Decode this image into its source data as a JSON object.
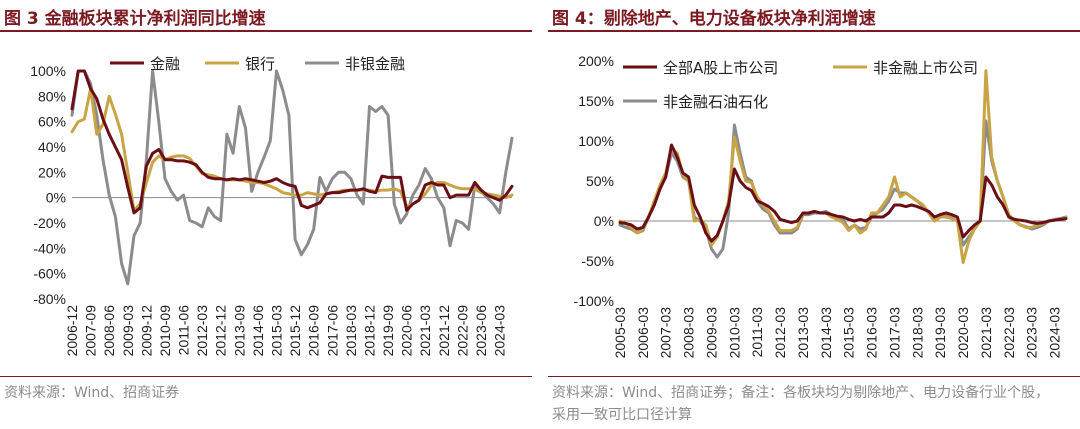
{
  "left": {
    "title": "图 3 金融板块累计净利润同比增速",
    "source": "资料来源：Wind、招商证券",
    "chart_data": {
      "type": "line",
      "ylim": [
        -0.8,
        1.0
      ],
      "yticks": [
        -0.8,
        -0.6,
        -0.4,
        -0.2,
        0,
        0.2,
        0.4,
        0.6,
        0.8,
        1.0
      ],
      "ytick_labels": [
        "-80%",
        "-60%",
        "-40%",
        "-20%",
        "0%",
        "20%",
        "40%",
        "60%",
        "80%",
        "100%"
      ],
      "xtick_labels": [
        "2006-12",
        "2007-09",
        "2008-06",
        "2009-03",
        "2009-12",
        "2010-09",
        "2011-06",
        "2012-03",
        "2012-12",
        "2013-09",
        "2014-06",
        "2015-03",
        "2015-12",
        "2016-09",
        "2017-06",
        "2018-03",
        "2018-12",
        "2019-09",
        "2020-06",
        "2021-03",
        "2021-12",
        "2022-09",
        "2023-06",
        "2024-03"
      ],
      "x": [
        "2006-12",
        "2007-03",
        "2007-06",
        "2007-09",
        "2007-12",
        "2008-03",
        "2008-06",
        "2008-09",
        "2008-12",
        "2009-03",
        "2009-06",
        "2009-09",
        "2009-12",
        "2010-03",
        "2010-06",
        "2010-09",
        "2010-12",
        "2011-03",
        "2011-06",
        "2011-09",
        "2011-12",
        "2012-03",
        "2012-06",
        "2012-09",
        "2012-12",
        "2013-03",
        "2013-06",
        "2013-09",
        "2013-12",
        "2014-03",
        "2014-06",
        "2014-09",
        "2014-12",
        "2015-03",
        "2015-06",
        "2015-09",
        "2015-12",
        "2016-03",
        "2016-06",
        "2016-09",
        "2016-12",
        "2017-03",
        "2017-06",
        "2017-09",
        "2017-12",
        "2018-03",
        "2018-06",
        "2018-09",
        "2018-12",
        "2019-03",
        "2019-06",
        "2019-09",
        "2019-12",
        "2020-03",
        "2020-06",
        "2020-09",
        "2020-12",
        "2021-03",
        "2021-06",
        "2021-09",
        "2021-12",
        "2022-03",
        "2022-06",
        "2022-09",
        "2022-12",
        "2023-03",
        "2023-06",
        "2023-09",
        "2023-12",
        "2024-03",
        "2024-06",
        "2024-09"
      ],
      "series": [
        {
          "name": "金融",
          "color": "#6b0f16",
          "values": [
            0.7,
            1.0,
            1.0,
            0.86,
            0.78,
            0.62,
            0.5,
            0.4,
            0.3,
            0.08,
            -0.12,
            -0.08,
            0.25,
            0.35,
            0.38,
            0.3,
            0.3,
            0.29,
            0.29,
            0.28,
            0.26,
            0.2,
            0.16,
            0.15,
            0.15,
            0.14,
            0.15,
            0.14,
            0.15,
            0.14,
            0.13,
            0.12,
            0.13,
            0.15,
            0.12,
            0.1,
            0.09,
            -0.06,
            -0.08,
            -0.06,
            -0.04,
            0.03,
            0.04,
            0.04,
            0.05,
            0.06,
            0.06,
            0.07,
            0.05,
            0.04,
            0.17,
            0.16,
            0.16,
            0.16,
            -0.1,
            -0.05,
            -0.02,
            0.1,
            0.12,
            0.1,
            0.1,
            0.0,
            0.02,
            0.02,
            0.02,
            0.12,
            0.06,
            0.02,
            0.0,
            -0.02,
            0.02,
            0.09
          ]
        },
        {
          "name": "银行",
          "color": "#c9a445",
          "values": [
            0.52,
            0.6,
            0.62,
            0.86,
            0.5,
            0.58,
            0.8,
            0.66,
            0.5,
            0.2,
            -0.1,
            -0.05,
            0.12,
            0.28,
            0.33,
            0.3,
            0.32,
            0.33,
            0.33,
            0.31,
            0.25,
            0.19,
            0.18,
            0.17,
            0.15,
            0.14,
            0.14,
            0.14,
            0.13,
            0.12,
            0.12,
            0.11,
            0.09,
            0.07,
            0.04,
            0.03,
            0.02,
            0.02,
            0.04,
            0.03,
            0.02,
            0.03,
            0.04,
            0.05,
            0.06,
            0.06,
            0.06,
            0.06,
            0.06,
            0.05,
            0.06,
            0.06,
            0.07,
            0.05,
            -0.07,
            -0.05,
            -0.02,
            0.03,
            0.1,
            0.12,
            0.12,
            0.1,
            0.08,
            0.07,
            0.07,
            0.07,
            0.04,
            0.03,
            0.02,
            0.01,
            0.0,
            0.02
          ]
        },
        {
          "name": "非银金融",
          "color": "#8c8c8c",
          "values": [
            0.65,
            1.0,
            1.0,
            0.9,
            0.65,
            0.3,
            0.02,
            -0.15,
            -0.52,
            -0.68,
            -0.3,
            -0.2,
            0.3,
            1.0,
            0.6,
            0.15,
            0.05,
            -0.02,
            0.02,
            -0.18,
            -0.2,
            -0.23,
            -0.08,
            -0.15,
            -0.18,
            0.5,
            0.35,
            0.72,
            0.55,
            0.05,
            0.2,
            0.32,
            0.45,
            1.0,
            0.85,
            0.65,
            -0.33,
            -0.45,
            -0.37,
            -0.25,
            0.16,
            0.05,
            0.15,
            0.2,
            0.2,
            0.15,
            0.02,
            -0.05,
            0.72,
            0.68,
            0.72,
            0.65,
            -0.05,
            -0.2,
            -0.13,
            0.02,
            0.1,
            0.23,
            0.15,
            0.0,
            -0.08,
            -0.38,
            -0.18,
            -0.2,
            -0.25,
            0.1,
            0.05,
            0.0,
            -0.05,
            -0.12,
            0.2,
            0.47
          ]
        }
      ]
    }
  },
  "right": {
    "title": "图 4：剔除地产、电力设备板块净利润增速",
    "source": "资料来源：Wind、招商证券；备注：各板块均为剔除地产、电力设备行业个股，采用一致可比口径计算",
    "chart_data": {
      "type": "line",
      "ylim": [
        -1.0,
        2.0
      ],
      "yticks": [
        -1.0,
        -0.5,
        0,
        0.5,
        1.0,
        1.5,
        2.0
      ],
      "ytick_labels": [
        "-100%",
        "-50%",
        "0%",
        "50%",
        "100%",
        "150%",
        "200%"
      ],
      "xtick_labels": [
        "2005-03",
        "2006-03",
        "2007-03",
        "2008-03",
        "2009-03",
        "2010-03",
        "2011-03",
        "2012-03",
        "2013-03",
        "2014-03",
        "2015-03",
        "2016-03",
        "2017-03",
        "2018-03",
        "2019-03",
        "2020-03",
        "2021-03",
        "2022-03",
        "2023-03",
        "2024-03"
      ],
      "x": [
        "2005-03",
        "2005-06",
        "2005-09",
        "2005-12",
        "2006-03",
        "2006-06",
        "2006-09",
        "2006-12",
        "2007-03",
        "2007-06",
        "2007-09",
        "2007-12",
        "2008-03",
        "2008-06",
        "2008-09",
        "2008-12",
        "2009-03",
        "2009-06",
        "2009-09",
        "2009-12",
        "2010-03",
        "2010-06",
        "2010-09",
        "2010-12",
        "2011-03",
        "2011-06",
        "2011-09",
        "2011-12",
        "2012-03",
        "2012-06",
        "2012-09",
        "2012-12",
        "2013-03",
        "2013-06",
        "2013-09",
        "2013-12",
        "2014-03",
        "2014-06",
        "2014-09",
        "2014-12",
        "2015-03",
        "2015-06",
        "2015-09",
        "2015-12",
        "2016-03",
        "2016-06",
        "2016-09",
        "2016-12",
        "2017-03",
        "2017-06",
        "2017-09",
        "2017-12",
        "2018-03",
        "2018-06",
        "2018-09",
        "2018-12",
        "2019-03",
        "2019-06",
        "2019-09",
        "2019-12",
        "2020-03",
        "2020-06",
        "2020-09",
        "2020-12",
        "2021-03",
        "2021-06",
        "2021-09",
        "2021-12",
        "2022-03",
        "2022-06",
        "2022-09",
        "2022-12",
        "2023-03",
        "2023-06",
        "2023-09",
        "2023-12",
        "2024-03",
        "2024-06",
        "2024-09"
      ],
      "series": [
        {
          "name": "全部A股上市公司",
          "color": "#6b0f16",
          "values": [
            -0.02,
            -0.03,
            -0.05,
            -0.1,
            -0.08,
            0.05,
            0.2,
            0.4,
            0.55,
            0.95,
            0.8,
            0.6,
            0.55,
            0.2,
            0.05,
            -0.15,
            -0.25,
            -0.18,
            0.0,
            0.2,
            0.65,
            0.5,
            0.42,
            0.38,
            0.25,
            0.22,
            0.18,
            0.12,
            0.02,
            0.0,
            -0.02,
            0.0,
            0.1,
            0.1,
            0.12,
            0.1,
            0.1,
            0.08,
            0.06,
            0.05,
            0.02,
            0.0,
            0.02,
            0.0,
            0.05,
            0.05,
            0.05,
            0.1,
            0.2,
            0.2,
            0.18,
            0.2,
            0.18,
            0.15,
            0.12,
            0.05,
            0.08,
            0.1,
            0.08,
            0.05,
            -0.2,
            -0.12,
            -0.05,
            0.0,
            0.55,
            0.45,
            0.3,
            0.2,
            0.05,
            0.02,
            0.01,
            0.0,
            -0.02,
            -0.03,
            -0.02,
            0.0,
            0.01,
            0.02,
            0.03
          ]
        },
        {
          "name": "非金融上市公司",
          "color": "#c9a445",
          "values": [
            0.0,
            -0.03,
            -0.08,
            -0.15,
            -0.1,
            0.05,
            0.25,
            0.45,
            0.6,
            0.9,
            0.85,
            0.58,
            0.5,
            0.0,
            0.02,
            -0.05,
            -0.3,
            -0.2,
            0.0,
            0.25,
            1.05,
            0.75,
            0.5,
            0.48,
            0.3,
            0.2,
            0.12,
            0.0,
            -0.12,
            -0.12,
            -0.12,
            -0.08,
            0.1,
            0.1,
            0.12,
            0.1,
            0.1,
            0.05,
            0.02,
            -0.02,
            -0.12,
            -0.05,
            -0.15,
            -0.1,
            0.1,
            0.1,
            0.2,
            0.3,
            0.55,
            0.3,
            0.35,
            0.3,
            0.25,
            0.2,
            0.1,
            0.0,
            0.05,
            0.05,
            0.03,
            0.0,
            -0.52,
            -0.25,
            -0.1,
            0.0,
            1.88,
            0.8,
            0.5,
            0.3,
            0.08,
            0.0,
            -0.05,
            -0.08,
            -0.08,
            -0.05,
            -0.03,
            0.0,
            0.01,
            0.02,
            0.04
          ]
        },
        {
          "name": "非金融石油石化",
          "color": "#8c8c8c",
          "values": [
            -0.05,
            -0.08,
            -0.1,
            -0.15,
            -0.12,
            0.05,
            0.22,
            0.42,
            0.55,
            0.85,
            0.75,
            0.55,
            0.5,
            0.05,
            0.0,
            -0.1,
            -0.35,
            -0.45,
            -0.35,
            0.1,
            1.2,
            0.85,
            0.55,
            0.5,
            0.25,
            0.15,
            0.1,
            -0.05,
            -0.15,
            -0.15,
            -0.15,
            -0.1,
            0.08,
            0.08,
            0.1,
            0.1,
            0.12,
            0.08,
            0.05,
            0.02,
            -0.1,
            -0.05,
            -0.1,
            -0.08,
            0.05,
            0.1,
            0.15,
            0.25,
            0.4,
            0.35,
            0.35,
            0.3,
            0.25,
            0.18,
            0.1,
            0.0,
            0.05,
            0.06,
            0.04,
            0.0,
            -0.3,
            -0.2,
            -0.1,
            0.0,
            1.25,
            0.75,
            0.5,
            0.3,
            0.05,
            0.0,
            -0.05,
            -0.07,
            -0.1,
            -0.08,
            -0.05,
            0.0,
            0.02,
            0.03,
            0.05
          ]
        }
      ]
    }
  }
}
